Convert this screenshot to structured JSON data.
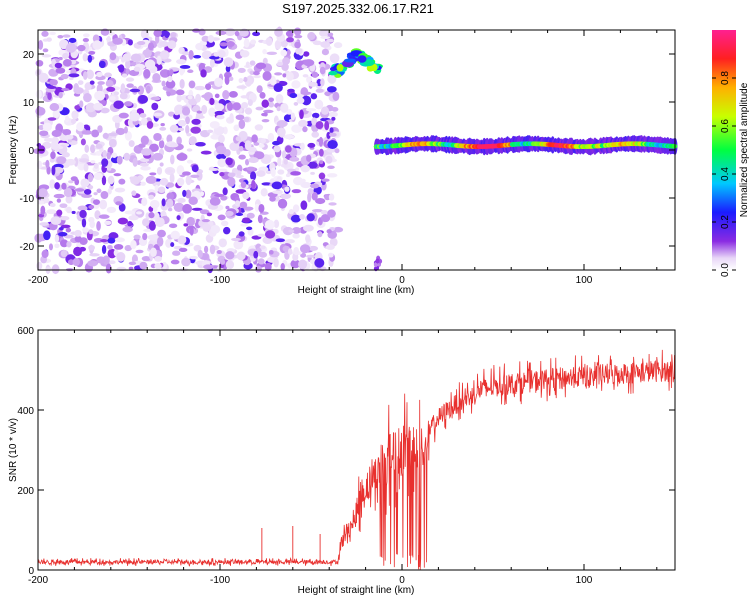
{
  "title": "S197.2025.332.06.17.R21",
  "chart_data": [
    {
      "type": "heatmap",
      "xlabel": "Height of straight line (km)",
      "ylabel": "Frequency (Hz)",
      "xlim": [
        -200,
        150
      ],
      "ylim": [
        -25,
        25
      ],
      "xticks": [
        -200,
        -100,
        0,
        100
      ],
      "yticks": [
        -20,
        -10,
        0,
        10,
        20
      ],
      "colorbar": {
        "label": "Normalized spectral amplitude",
        "range": [
          0,
          1
        ],
        "ticks": [
          0.0,
          0.2,
          0.4,
          0.6,
          0.8
        ],
        "tick_labels": [
          "0.0",
          "0.2",
          "0.4",
          "0.6",
          "0.8"
        ]
      },
      "noise_region": {
        "x": [
          -200,
          -35
        ],
        "freq_range": [
          -25,
          25
        ],
        "max_amplitude": 0.2
      },
      "features": [
        {
          "description": "elevated tone",
          "x": [
            -38,
            -12
          ],
          "freq": [
            16,
            20
          ],
          "peak_amplitude": 0.65
        },
        {
          "description": "main tone ridge",
          "x": [
            -14,
            150
          ],
          "freq": [
            0,
            2
          ],
          "peak_amplitude": 0.95
        }
      ]
    },
    {
      "type": "line",
      "xlabel": "Height of straight line (km)",
      "ylabel": "SNR (10 * v/v)",
      "xlim": [
        -200,
        150
      ],
      "ylim": [
        0,
        600
      ],
      "xticks": [
        -200,
        -100,
        0,
        100
      ],
      "yticks": [
        0,
        200,
        400,
        600
      ],
      "series": [
        {
          "name": "SNR",
          "color": "#e8302e",
          "segments": [
            {
              "x": [
                -200,
                -35
              ],
              "mean": 20,
              "noise": 10
            },
            {
              "x": [
                -35,
                -25
              ],
              "from": 20,
              "to": 130,
              "noise": 40
            },
            {
              "x": [
                -25,
                -12
              ],
              "from": 130,
              "to": 250,
              "noise": 90
            },
            {
              "x": [
                -12,
                15
              ],
              "from": 250,
              "to": 330,
              "noise": 140,
              "dropouts": true
            },
            {
              "x": [
                15,
                40
              ],
              "from": 330,
              "to": 440,
              "noise": 50
            },
            {
              "x": [
                40,
                150
              ],
              "from": 440,
              "to": 500,
              "noise": 55
            }
          ],
          "spikes": [
            {
              "x": -77,
              "y": 105
            },
            {
              "x": -60,
              "y": 110
            },
            {
              "x": -45,
              "y": 90
            }
          ]
        }
      ]
    }
  ]
}
